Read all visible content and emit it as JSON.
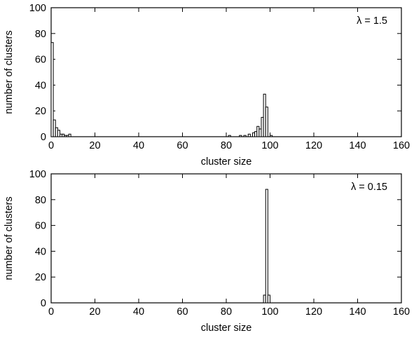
{
  "chart_data": [
    {
      "type": "bar",
      "xlabel": "cluster size",
      "ylabel": "number of clusters",
      "annotation": "λ = 1.5",
      "xlim": [
        0,
        160
      ],
      "ylim": [
        0,
        100
      ],
      "xticks": [
        0,
        20,
        40,
        60,
        80,
        100,
        120,
        140,
        160
      ],
      "yticks": [
        0,
        20,
        40,
        60,
        80,
        100
      ],
      "bin_width": 1,
      "bars": [
        {
          "x": 1,
          "y": 73
        },
        {
          "x": 2,
          "y": 13
        },
        {
          "x": 3,
          "y": 7
        },
        {
          "x": 4,
          "y": 5
        },
        {
          "x": 5,
          "y": 2
        },
        {
          "x": 6,
          "y": 2
        },
        {
          "x": 7,
          "y": 1
        },
        {
          "x": 8,
          "y": 1
        },
        {
          "x": 9,
          "y": 2
        },
        {
          "x": 82,
          "y": 1
        },
        {
          "x": 87,
          "y": 1
        },
        {
          "x": 89,
          "y": 1
        },
        {
          "x": 91,
          "y": 2
        },
        {
          "x": 93,
          "y": 3
        },
        {
          "x": 94,
          "y": 4
        },
        {
          "x": 95,
          "y": 8
        },
        {
          "x": 96,
          "y": 6
        },
        {
          "x": 97,
          "y": 15
        },
        {
          "x": 98,
          "y": 33
        },
        {
          "x": 99,
          "y": 23
        },
        {
          "x": 101,
          "y": 1
        }
      ]
    },
    {
      "type": "bar",
      "xlabel": "cluster size",
      "ylabel": "number of clusters",
      "annotation": "λ = 0.15",
      "xlim": [
        0,
        160
      ],
      "ylim": [
        0,
        100
      ],
      "xticks": [
        0,
        20,
        40,
        60,
        80,
        100,
        120,
        140,
        160
      ],
      "yticks": [
        0,
        20,
        40,
        60,
        80,
        100
      ],
      "bin_width": 1,
      "bars": [
        {
          "x": 98,
          "y": 6
        },
        {
          "x": 99,
          "y": 88
        },
        {
          "x": 100,
          "y": 6
        }
      ]
    }
  ]
}
